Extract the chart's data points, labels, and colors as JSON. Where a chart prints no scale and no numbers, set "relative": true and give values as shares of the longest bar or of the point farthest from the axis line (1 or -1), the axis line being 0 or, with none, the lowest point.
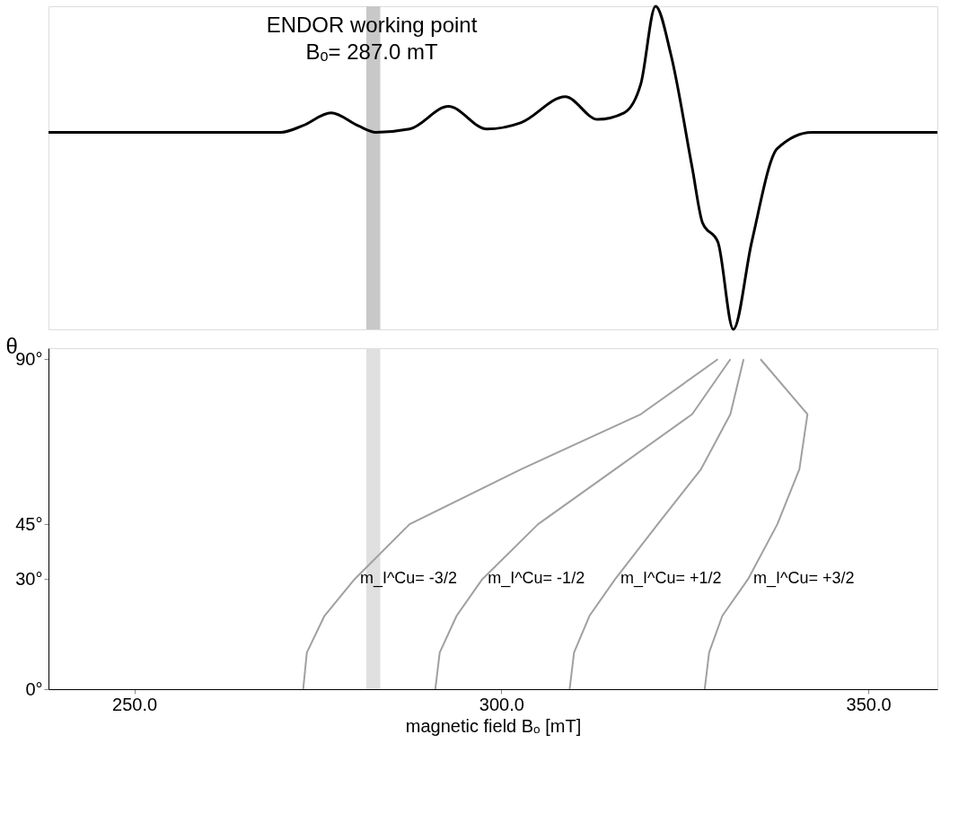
{
  "chart_data": [
    {
      "type": "line",
      "relative": true,
      "color": "#000000",
      "xlim": [
        238.3,
        359.4
      ],
      "grid": false,
      "x": [
        238.3,
        270.0,
        272.9,
        276.8,
        280.5,
        282.9,
        287.5,
        292.8,
        298.0,
        302.7,
        308.7,
        313.1,
        316.7,
        319.0,
        321.0,
        323.1,
        326.0,
        327.4,
        329.5,
        331.6,
        334.1,
        337.6,
        342.3,
        359.4
      ],
      "values": [
        0.61,
        0.61,
        0.63,
        0.67,
        0.63,
        0.61,
        0.62,
        0.69,
        0.62,
        0.64,
        0.72,
        0.65,
        0.67,
        0.76,
        1.0,
        0.85,
        0.5,
        0.33,
        0.27,
        0,
        0.27,
        0.56,
        0.61,
        0.61
      ],
      "annotations": [
        "ENDOR working point",
        "Bₒ= 287.0 mT"
      ],
      "bands": [
        {
          "axis": "x",
          "from": 281.6,
          "to": 283.5,
          "color": "#c8c8c8"
        }
      ]
    },
    {
      "type": "line",
      "xlim": [
        238.3,
        359.4
      ],
      "ylim": [
        0,
        93
      ],
      "grid": false,
      "xticks": [
        {
          "value": 250,
          "label": "250.0"
        },
        {
          "value": 300,
          "label": "300.0"
        },
        {
          "value": 350,
          "label": "350.0"
        }
      ],
      "yticks": [
        {
          "value": 0,
          "label": "0°"
        },
        {
          "value": 30,
          "label": "30°"
        },
        {
          "value": 45,
          "label": "45°"
        },
        {
          "value": 90,
          "label": "90°"
        }
      ],
      "xlabel": "magnetic field Bₒ [mT]",
      "ylabel": "θ",
      "series": [
        {
          "name": "m_I^Cu= -3/2",
          "color": "#a0a0a0",
          "x": [
            273.0,
            273.5,
            275.9,
            280.0,
            287.5,
            302.7,
            319.0,
            329.5
          ],
          "values": [
            0,
            10,
            20,
            30,
            45,
            60,
            75,
            90
          ]
        },
        {
          "name": "m_I^Cu= -1/2",
          "color": "#a0a0a0",
          "x": [
            291.0,
            291.6,
            293.9,
            297.4,
            305.0,
            315.5,
            326.0,
            331.2
          ],
          "values": [
            0,
            10,
            20,
            30,
            45,
            60,
            75,
            90
          ]
        },
        {
          "name": "m_I^Cu= +1/2",
          "color": "#a0a0a0",
          "x": [
            309.3,
            309.9,
            312.0,
            315.5,
            321.3,
            327.2,
            331.2,
            333.0
          ],
          "values": [
            0,
            10,
            20,
            30,
            45,
            60,
            75,
            90
          ]
        },
        {
          "name": "m_I^Cu= +3/2",
          "color": "#a0a0a0",
          "x": [
            327.7,
            328.3,
            330.1,
            333.6,
            337.6,
            340.6,
            341.7,
            335.3
          ],
          "values": [
            0,
            10,
            20,
            30,
            45,
            60,
            75,
            90
          ]
        }
      ],
      "bands": [
        {
          "axis": "x",
          "from": 281.6,
          "to": 283.5,
          "color": "#e0e0e0"
        }
      ]
    }
  ]
}
